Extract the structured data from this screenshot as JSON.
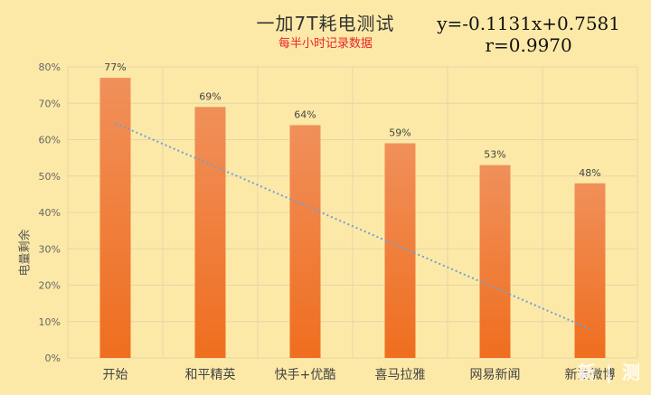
{
  "chart_data": {
    "type": "bar",
    "title": "一加7T耗电测试",
    "subtitle": "每半小时记录数据",
    "ylabel": "电量剩余",
    "equation": "y=-0.1131x+0.7581",
    "r_value": "r=0.9970",
    "categories": [
      "开始",
      "和平精英",
      "快手+优酷",
      "喜马拉雅",
      "网易新闻",
      "新浪微博"
    ],
    "values": [
      77,
      69,
      64,
      59,
      53,
      48
    ],
    "data_labels": [
      "77%",
      "69%",
      "64%",
      "59%",
      "53%",
      "48%"
    ],
    "ylim": [
      0,
      80
    ],
    "yticks": [
      "0%",
      "10%",
      "20%",
      "30%",
      "40%",
      "50%",
      "60%",
      "70%",
      "80%"
    ],
    "trendline": {
      "slope": -0.1131,
      "intercept": 0.7581,
      "style": "dotted"
    },
    "grid": true,
    "colors": {
      "bar_top": "#f0905a",
      "bar_bottom": "#ef6e1f",
      "trend": "#6f9fd8",
      "grid": "#e4d6a8",
      "background": "#fde9a7"
    }
  },
  "watermark": "新 | 测"
}
